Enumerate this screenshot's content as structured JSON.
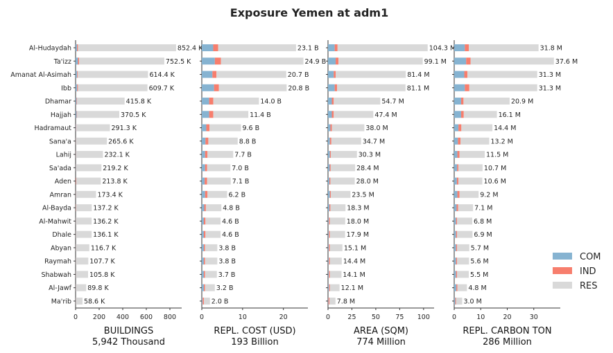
{
  "chart_data": {
    "type": "bar",
    "orientation": "horizontal-stacked",
    "title": "Exposure Yemen at adm1",
    "categories": [
      "Al-Hudaydah",
      "Ta'izz",
      "Amanat Al-Asimah",
      "Ibb",
      "Dhamar",
      "Hajjah",
      "Hadramaut",
      "Sana'a",
      "Lahij",
      "Sa'ada",
      "Aden",
      "Amran",
      "Al-Bayda",
      "Al-Mahwit",
      "Dhale",
      "Abyan",
      "Raymah",
      "Shabwah",
      "Al-Jawf",
      "Ma'rib"
    ],
    "legend": {
      "placement": "right",
      "entries": [
        {
          "name": "COM",
          "color": "#86b3d1"
        },
        {
          "name": "IND",
          "color": "#f77e6d"
        },
        {
          "name": "RES",
          "color": "#d9d9d9"
        }
      ]
    },
    "panels": [
      {
        "xlabel": "BUILDINGS",
        "subtitle": "5,942 Thousand",
        "xlim": [
          0,
          900
        ],
        "xticks": [
          0,
          200,
          400,
          600,
          800
        ],
        "xtick_labels": [
          "0",
          "200",
          "400",
          "600",
          "800"
        ],
        "labels": [
          "852.4 K",
          "752.5 K",
          "614.4 K",
          "609.7 K",
          "415.8 K",
          "370.5 K",
          "291.3 K",
          "265.6 K",
          "232.1 K",
          "219.2 K",
          "213.8 K",
          "173.4 K",
          "137.2 K",
          "136.2 K",
          "136.1 K",
          "116.7 K",
          "107.7 K",
          "105.8 K",
          "89.8 K",
          "58.6 K"
        ],
        "series": [
          {
            "name": "COM",
            "values": [
              12,
              20,
              13,
              13,
              8,
              9,
              4,
              2,
              2,
              2,
              2,
              2,
              1,
              1,
              1,
              1,
              1,
              1,
              1,
              1
            ]
          },
          {
            "name": "IND",
            "values": [
              8,
              10,
              6,
              7,
              4,
              4,
              3,
              2,
              2,
              1,
              4,
              2,
              2,
              1,
              1,
              1,
              1,
              1,
              1,
              1
            ]
          },
          {
            "name": "RES",
            "values": [
              832.4,
              722.5,
              595.4,
              589.7,
              403.8,
              357.5,
              284.3,
              261.6,
              228.1,
              216.2,
              207.8,
              169.4,
              134.2,
              134.2,
              134.1,
              114.7,
              105.7,
              103.8,
              87.8,
              56.6
            ]
          }
        ]
      },
      {
        "xlabel": "REPL. COST (USD)",
        "subtitle": "193 Billion",
        "xlim": [
          0,
          26
        ],
        "xticks": [
          0,
          10,
          20
        ],
        "xtick_labels": [
          "0",
          "10",
          "20"
        ],
        "labels": [
          "23.1 B",
          "24.9 B",
          "20.7 B",
          "20.8 B",
          "14.0 B",
          "11.4 B",
          "9.6 B",
          "8.8 B",
          "7.7 B",
          "7.0 B",
          "7.1 B",
          "6.2 B",
          "4.8 B",
          "4.6 B",
          "4.6 B",
          "3.8 B",
          "3.8 B",
          "3.7 B",
          "3.2 B",
          "2.0 B"
        ],
        "series": [
          {
            "name": "COM",
            "values": [
              2.8,
              3.2,
              2.6,
              3.0,
              1.8,
              1.8,
              1.1,
              0.9,
              0.8,
              0.8,
              0.7,
              0.8,
              0.6,
              0.5,
              0.5,
              0.5,
              0.5,
              0.5,
              0.5,
              0.2
            ]
          },
          {
            "name": "IND",
            "values": [
              1.2,
              1.5,
              1.0,
              1.2,
              1.0,
              1.0,
              0.8,
              0.7,
              0.6,
              0.5,
              0.6,
              0.6,
              0.4,
              0.4,
              0.4,
              0.3,
              0.3,
              0.3,
              0.3,
              0.3
            ]
          },
          {
            "name": "RES",
            "values": [
              19.1,
              20.2,
              17.1,
              16.6,
              11.2,
              8.6,
              7.7,
              7.2,
              6.3,
              5.7,
              5.8,
              4.8,
              3.8,
              3.7,
              3.7,
              3.0,
              3.0,
              2.9,
              2.4,
              1.5
            ]
          }
        ]
      },
      {
        "xlabel": "AREA (SQM)",
        "subtitle": "774 Million",
        "xlim": [
          0,
          111
        ],
        "xticks": [
          0,
          25,
          50,
          75,
          100
        ],
        "xtick_labels": [
          "0",
          "25",
          "50",
          "75",
          "100"
        ],
        "labels": [
          "104.3 M",
          "99.1 M",
          "81.4 M",
          "81.1 M",
          "54.7 M",
          "47.4 M",
          "38.0 M",
          "34.7 M",
          "30.3 M",
          "28.4 M",
          "28.0 M",
          "23.5 M",
          "18.3 M",
          "18.0 M",
          "17.9 M",
          "15.1 M",
          "14.4 M",
          "14.1 M",
          "12.1 M",
          "7.8 M"
        ],
        "series": [
          {
            "name": "COM",
            "values": [
              7,
              8,
              6,
              7,
              4,
              4,
              2.5,
              2,
              2,
              1.8,
              1.5,
              2,
              1.5,
              0.8,
              0.8,
              0.8,
              0.8,
              0.8,
              1,
              0.5
            ]
          },
          {
            "name": "IND",
            "values": [
              3,
              3,
              2,
              2.5,
              2,
              2,
              1.5,
              1.5,
              1,
              1,
              1,
              1,
              1,
              1,
              1,
              1,
              1,
              1,
              1,
              1
            ]
          },
          {
            "name": "RES",
            "values": [
              94.3,
              88.1,
              73.4,
              71.6,
              48.7,
              41.4,
              34.0,
              31.2,
              27.3,
              25.6,
              25.5,
              20.5,
              15.8,
              16.2,
              16.1,
              13.3,
              12.6,
              12.3,
              10.1,
              6.3
            ]
          }
        ]
      },
      {
        "xlabel": "REPL. CARBON TON",
        "subtitle": "286 Million",
        "xlim": [
          0,
          40
        ],
        "xticks": [
          0,
          10,
          20,
          30
        ],
        "xtick_labels": [
          "0",
          "10",
          "20",
          "30"
        ],
        "labels": [
          "31.8 M",
          "37.6 M",
          "31.3 M",
          "31.3 M",
          "20.9 M",
          "16.1 M",
          "14.4 M",
          "13.2 M",
          "11.5 M",
          "10.7 M",
          "10.6 M",
          "9.2 M",
          "7.1 M",
          "6.8 M",
          "6.9 M",
          "5.7 M",
          "5.6 M",
          "5.5 M",
          "4.8 M",
          "3.0 M"
        ],
        "series": [
          {
            "name": "COM",
            "values": [
              4.0,
              4.5,
              3.8,
              4.0,
              2.6,
              2.6,
              1.6,
              1.4,
              1.2,
              1.1,
              1.0,
              1.2,
              0.9,
              0.7,
              0.7,
              0.7,
              0.7,
              0.7,
              0.8,
              0.4
            ]
          },
          {
            "name": "IND",
            "values": [
              1.5,
              1.7,
              1.2,
              1.7,
              0.9,
              1.0,
              1.1,
              1.0,
              0.8,
              0.5,
              0.6,
              0.8,
              0.6,
              0.4,
              0.4,
              0.4,
              0.4,
              0.4,
              0.4,
              0.3
            ]
          },
          {
            "name": "RES",
            "values": [
              26.3,
              31.4,
              26.3,
              25.6,
              17.4,
              12.5,
              11.7,
              10.8,
              9.5,
              9.1,
              9.0,
              7.2,
              5.6,
              5.7,
              5.8,
              4.6,
              4.5,
              4.4,
              3.6,
              2.3
            ]
          }
        ]
      }
    ]
  }
}
